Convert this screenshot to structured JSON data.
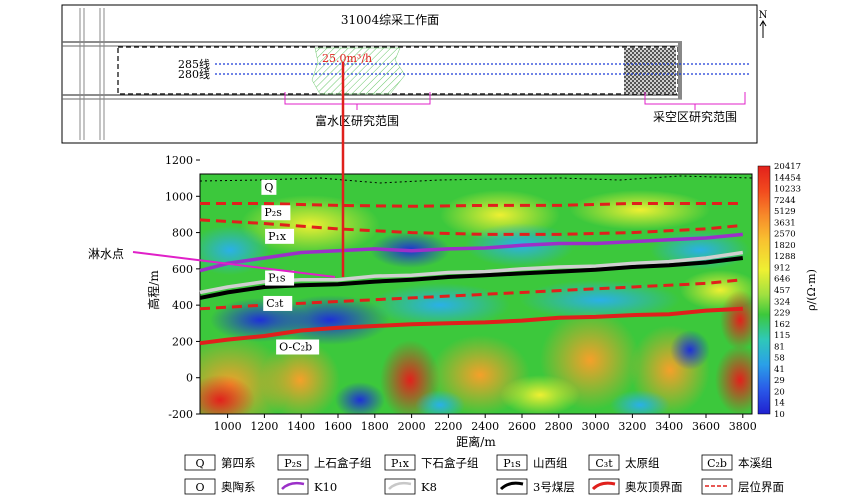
{
  "map": {
    "title": "31004综采工作面",
    "north": "N",
    "line1": "285线",
    "line2": "280线",
    "inflow": "25.0m³/h",
    "zone_rich": "富水区研究范围",
    "zone_goaf": "采空区研究范围"
  },
  "pointer_label": "淋水点",
  "chart_data": {
    "type": "heatmap",
    "xlabel": "距离/m",
    "ylabel": "高程/m",
    "x_ticks": [
      1000,
      1200,
      1400,
      1600,
      1800,
      2000,
      2200,
      2400,
      2600,
      2800,
      3000,
      3200,
      3400,
      3600,
      3800
    ],
    "y_ticks": [
      -200,
      0,
      200,
      400,
      600,
      800,
      1000,
      1200
    ],
    "xlim": [
      850,
      3850
    ],
    "ylim": [
      -200,
      1200
    ],
    "colorbar": {
      "label": "ρ/(Ω·m)",
      "levels": [
        "20417",
        "14454",
        "10233",
        "7244",
        "5129",
        "3631",
        "2570",
        "1820",
        "1288",
        "912",
        "646",
        "457",
        "324",
        "229",
        "162",
        "115",
        "81",
        "58",
        "41",
        "29",
        "20",
        "14",
        "10"
      ]
    },
    "strata_labels": [
      {
        "text": "Q",
        "x": 1200,
        "y": 1030
      },
      {
        "text": "P₂s",
        "x": 1200,
        "y": 890
      },
      {
        "text": "P₁x",
        "x": 1220,
        "y": 760
      },
      {
        "text": "P₁s",
        "x": 1220,
        "y": 530
      },
      {
        "text": "C₃t",
        "x": 1210,
        "y": 390
      },
      {
        "text": "O-C₂b",
        "x": 1280,
        "y": 150
      }
    ],
    "series": [
      {
        "name": "K10",
        "color": "#9b30c8",
        "x": [
          850,
          1000,
          1200,
          1400,
          1600,
          1800,
          2000,
          2200,
          2400,
          2600,
          2800,
          3000,
          3200,
          3400,
          3600,
          3800
        ],
        "y": [
          590,
          630,
          660,
          690,
          700,
          710,
          700,
          710,
          715,
          730,
          740,
          740,
          750,
          760,
          770,
          790
        ]
      },
      {
        "name": "K8",
        "color": "#d0d0d0",
        "x": [
          850,
          1000,
          1200,
          1400,
          1600,
          1800,
          2000,
          2200,
          2400,
          2600,
          2800,
          3000,
          3200,
          3400,
          3600,
          3800
        ],
        "y": [
          470,
          500,
          530,
          540,
          540,
          560,
          565,
          580,
          585,
          600,
          610,
          615,
          630,
          640,
          660,
          690
        ]
      },
      {
        "name": "3号煤层",
        "color": "#000000",
        "x": [
          850,
          1000,
          1200,
          1400,
          1600,
          1800,
          2000,
          2200,
          2400,
          2600,
          2800,
          3000,
          3200,
          3400,
          3600,
          3800
        ],
        "y": [
          440,
          470,
          500,
          510,
          515,
          530,
          540,
          555,
          565,
          575,
          585,
          595,
          610,
          620,
          635,
          660
        ]
      },
      {
        "name": "奥灰顶界面",
        "color": "#e0201c",
        "x": [
          850,
          1000,
          1200,
          1400,
          1600,
          1800,
          2000,
          2200,
          2400,
          2600,
          2800,
          3000,
          3200,
          3400,
          3600,
          3800
        ],
        "y": [
          190,
          210,
          230,
          260,
          275,
          285,
          295,
          300,
          305,
          315,
          330,
          335,
          345,
          350,
          370,
          380
        ]
      }
    ],
    "boundaries": [
      {
        "name": "层位界面",
        "x": [
          850,
          1200,
          1600,
          2000,
          2400,
          2800,
          3200,
          3600,
          3800
        ],
        "y": [
          960,
          960,
          950,
          945,
          950,
          950,
          960,
          960,
          960
        ]
      },
      {
        "name": "层位界面",
        "x": [
          850,
          1200,
          1600,
          2000,
          2400,
          2800,
          3200,
          3600,
          3800
        ],
        "y": [
          870,
          850,
          820,
          800,
          790,
          790,
          800,
          820,
          840
        ]
      },
      {
        "name": "层位界面",
        "x": [
          850,
          1200,
          1600,
          2000,
          2400,
          2800,
          3200,
          3600,
          3800
        ],
        "y": [
          380,
          400,
          420,
          440,
          460,
          480,
          500,
          520,
          540
        ]
      }
    ],
    "legend": [
      {
        "sym": "Q",
        "label": "第四系"
      },
      {
        "sym": "P₂s",
        "label": "上石盒子组"
      },
      {
        "sym": "P₁x",
        "label": "下石盒子组"
      },
      {
        "sym": "P₁s",
        "label": "山西组"
      },
      {
        "sym": "C₃t",
        "label": "太原组"
      },
      {
        "sym": "C₂b",
        "label": "本溪组"
      },
      {
        "sym": "O",
        "label": "奥陶系"
      },
      {
        "line": "K10",
        "label": "K10"
      },
      {
        "line": "K8",
        "label": "K8"
      },
      {
        "line": "coal",
        "label": "3号煤层"
      },
      {
        "line": "ordo",
        "label": "奥灰顶界面"
      },
      {
        "line": "bound",
        "label": "层位界面"
      }
    ]
  }
}
